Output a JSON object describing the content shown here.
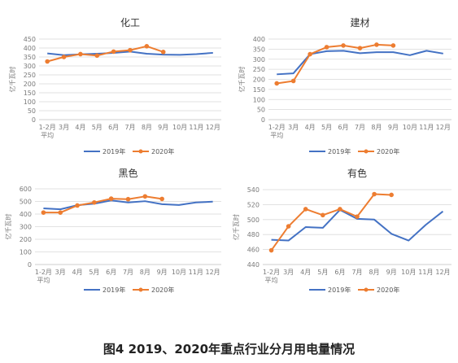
{
  "caption": "图4 2019、2020年重点行业分月用电量情况",
  "colors": {
    "s2019": "#4472c4",
    "s2020": "#ed7d31",
    "grid": "#d9d9d9",
    "axis": "#bfbfbf"
  },
  "chart_data": [
    {
      "type": "line",
      "title": "化工",
      "ylabel": "亿千瓦时",
      "categories": [
        "1-2月\n平均",
        "3月",
        "4月",
        "5月",
        "6月",
        "7月",
        "8月",
        "9月",
        "10月",
        "11月",
        "12月"
      ],
      "yticks": [
        0,
        50,
        100,
        150,
        200,
        250,
        300,
        350,
        400,
        450
      ],
      "ylim": [
        0,
        450
      ],
      "series": [
        {
          "name": "2019年",
          "values": [
            370,
            360,
            365,
            368,
            373,
            380,
            368,
            363,
            362,
            366,
            373
          ]
        },
        {
          "name": "2020年",
          "values": [
            325,
            350,
            366,
            358,
            380,
            388,
            410,
            378,
            null,
            null,
            null
          ]
        }
      ]
    },
    {
      "type": "line",
      "title": "建材",
      "ylabel": "亿千瓦时",
      "categories": [
        "1-2月\n平均",
        "3月",
        "4月",
        "5月",
        "6月",
        "7月",
        "8月",
        "9月",
        "10月",
        "11月",
        "12月"
      ],
      "yticks": [
        0,
        50,
        100,
        150,
        200,
        250,
        300,
        350,
        400
      ],
      "ylim": [
        0,
        400
      ],
      "series": [
        {
          "name": "2019年",
          "values": [
            225,
            230,
            325,
            340,
            342,
            330,
            335,
            335,
            320,
            342,
            328
          ]
        },
        {
          "name": "2020年",
          "values": [
            180,
            192,
            325,
            360,
            368,
            355,
            372,
            368,
            null,
            null,
            null
          ]
        }
      ]
    },
    {
      "type": "line",
      "title": "黑色",
      "ylabel": "亿千瓦时",
      "categories": [
        "1-2月\n平均",
        "3月",
        "4月",
        "5月",
        "6月",
        "7月",
        "8月",
        "9月",
        "10月",
        "11月",
        "12月"
      ],
      "yticks": [
        0,
        100,
        200,
        300,
        400,
        500,
        600
      ],
      "ylim": [
        0,
        600
      ],
      "series": [
        {
          "name": "2019年",
          "values": [
            445,
            438,
            470,
            482,
            508,
            492,
            502,
            478,
            472,
            492,
            498
          ]
        },
        {
          "name": "2020年",
          "values": [
            412,
            412,
            468,
            492,
            522,
            518,
            540,
            520,
            null,
            null,
            null
          ]
        }
      ]
    },
    {
      "type": "line",
      "title": "有色",
      "ylabel": "亿千瓦时",
      "categories": [
        "1-2月\n平均",
        "3月",
        "4月",
        "5月",
        "6月",
        "7月",
        "8月",
        "9月",
        "10月",
        "11月",
        "12月"
      ],
      "yticks": [
        440,
        460,
        480,
        500,
        520,
        540
      ],
      "ylim": [
        440,
        540
      ],
      "series": [
        {
          "name": "2019年",
          "values": [
            473,
            472,
            490,
            489,
            513,
            501,
            500,
            481,
            472,
            493,
            511
          ]
        },
        {
          "name": "2020年",
          "values": [
            459,
            491,
            514,
            506,
            514,
            504,
            534,
            533,
            null,
            null,
            null
          ]
        }
      ]
    }
  ]
}
